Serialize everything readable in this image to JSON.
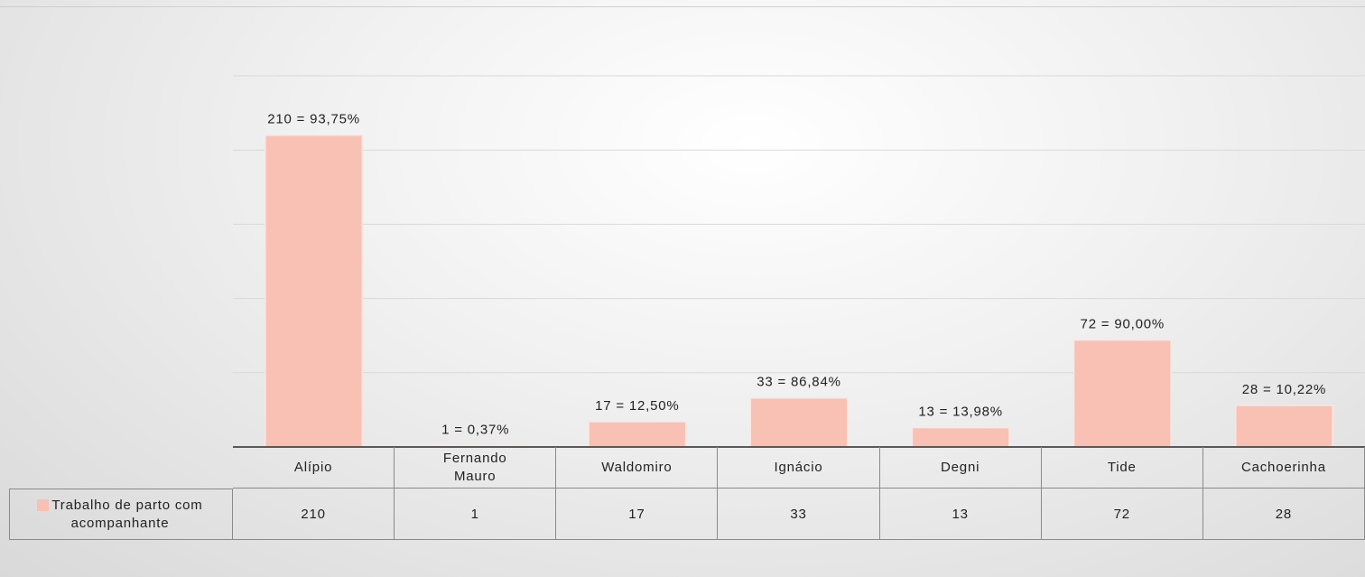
{
  "chart_data": {
    "type": "bar",
    "categories": [
      "Alípio",
      "Fernando Mauro",
      "Waldomiro",
      "Ignácio",
      "Degni",
      "Tide",
      "Cachoerinha"
    ],
    "series": [
      {
        "name": "Trabalho de parto com acompanhante",
        "color": "#f9c0b4",
        "values": [
          210,
          1,
          17,
          33,
          13,
          72,
          28
        ],
        "value_labels": [
          "210 = 93,75%",
          "1 = 0,37%",
          "17 = 12,50%",
          "33 = 86,84%",
          "13 = 13,98%",
          "72 = 90,00%",
          "28 = 10,22%"
        ]
      }
    ],
    "ylim": [
      0,
      250
    ],
    "yticks": [
      0,
      50,
      100,
      150,
      200,
      250
    ],
    "grid": true
  }
}
